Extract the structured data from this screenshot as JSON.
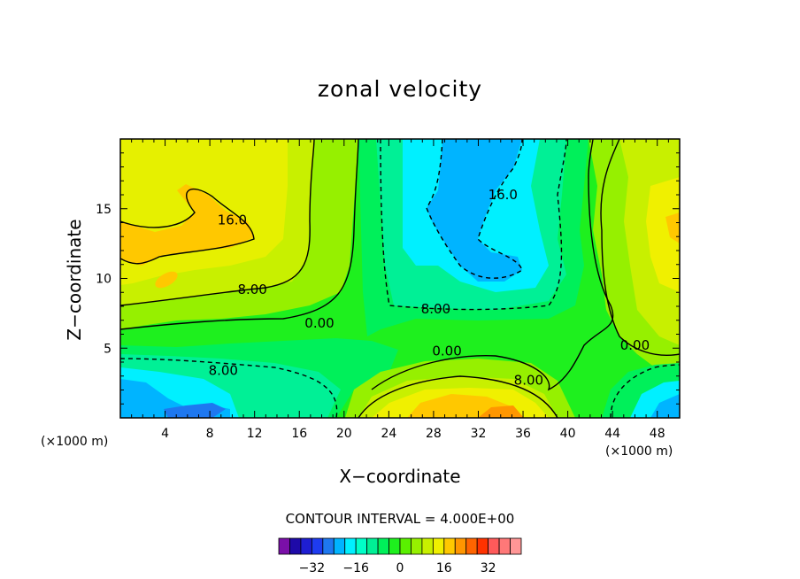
{
  "chart_data": {
    "type": "contour",
    "title": "zonal velocity",
    "xlabel": "X−coordinate",
    "ylabel": "Z−coordinate",
    "x_unit_left": "(×1000 m)",
    "x_unit_right": "(×1000 m)",
    "xlim": [
      0,
      50
    ],
    "ylim": [
      0,
      20
    ],
    "x_ticks": [
      4,
      8,
      12,
      16,
      20,
      24,
      28,
      32,
      36,
      40,
      44,
      48
    ],
    "y_ticks": [
      5,
      10,
      15
    ],
    "contour_interval_text": "CONTOUR INTERVAL = 4.000E+00",
    "contour_interval": 4.0,
    "contour_labels": [
      {
        "text": "16.0",
        "x": 10,
        "z": 14.2
      },
      {
        "text": "8.00",
        "x": 11.8,
        "z": 9.2
      },
      {
        "text": "0.00",
        "x": 17.8,
        "z": 6.8
      },
      {
        "text": "8.00",
        "x": 9.2,
        "z": 3.4
      },
      {
        "text": "16.0",
        "x": 34.2,
        "z": 16.0
      },
      {
        "text": "8.00",
        "x": 28.2,
        "z": 7.8
      },
      {
        "text": "0.00",
        "x": 29.2,
        "z": 4.8
      },
      {
        "text": "8.00",
        "x": 36.5,
        "z": 2.7
      },
      {
        "text": "0.00",
        "x": 46.0,
        "z": 5.2
      }
    ],
    "colorbar": {
      "tick_labels": [
        "−32",
        "−16",
        "0",
        "16",
        "32"
      ],
      "tick_values": [
        -32,
        -16,
        0,
        16,
        32
      ],
      "colors": [
        "#7a0fa8",
        "#1e0aa8",
        "#1e1ed2",
        "#1e3cf0",
        "#1e78f0",
        "#00b4ff",
        "#00f0ff",
        "#00ffc8",
        "#00f096",
        "#00f05a",
        "#1ef01e",
        "#5af000",
        "#96f000",
        "#c8f000",
        "#f0f000",
        "#ffc800",
        "#ff9600",
        "#ff6400",
        "#ff3200",
        "#ff5a5a",
        "#ff7878",
        "#ff9696"
      ]
    },
    "regions_description_colors": {
      "yellow_green": "#d2f000",
      "light_green": "#96f000",
      "green": "#3cf000",
      "bright_green": "#1ef01e",
      "spring": "#00f05a",
      "aqua_green": "#00f096",
      "cyan": "#00f0ff",
      "sky": "#00b4ff",
      "orange": "#ffc800",
      "dark_orange": "#ff9600",
      "yellow": "#f0f000",
      "blue": "#1e78f0"
    }
  }
}
